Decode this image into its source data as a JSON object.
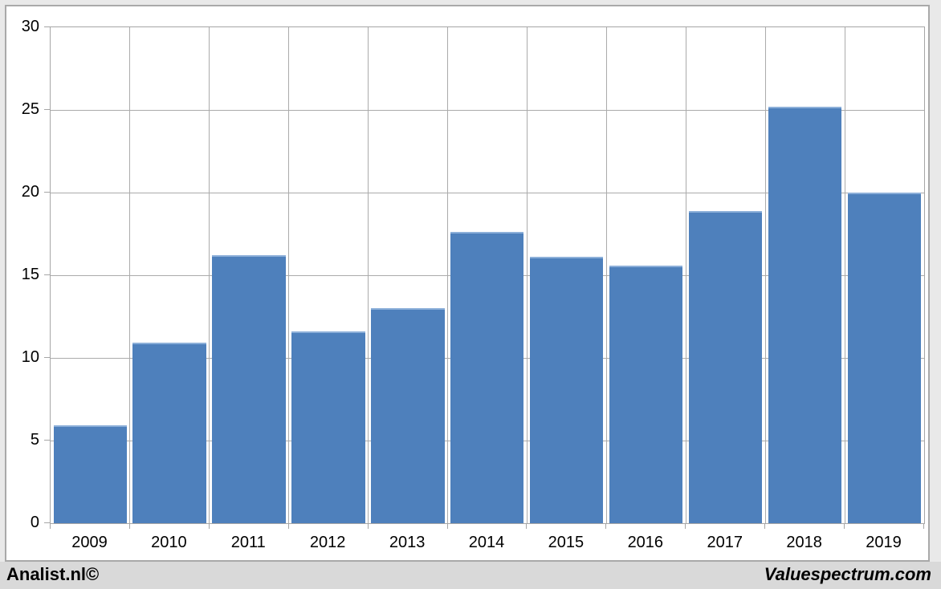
{
  "chart_data": {
    "type": "bar",
    "categories": [
      "2009",
      "2010",
      "2011",
      "2012",
      "2013",
      "2014",
      "2015",
      "2016",
      "2017",
      "2018",
      "2019"
    ],
    "values": [
      5.9,
      10.9,
      16.2,
      11.6,
      13.0,
      17.6,
      16.1,
      15.6,
      18.9,
      25.2,
      20.0
    ],
    "title": "",
    "xlabel": "",
    "ylabel": "",
    "ylim": [
      0,
      30
    ],
    "yticks": [
      0,
      5,
      10,
      15,
      20,
      25,
      30
    ],
    "grid": true,
    "legend": false,
    "bar_color": "#4E80BC",
    "bar_top_edge_color": "#8CAFD9",
    "gridline_color": "#ABABAB"
  },
  "footer": {
    "left_credit": "Analist.nl©",
    "right_credit": "Valuespectrum.com"
  },
  "colors": {
    "page_margin": "#E9E9E9",
    "frame_border": "#A9A9A9",
    "chart_background": "#FFFFFF",
    "credits_bar_background": "#D9D9D9",
    "text": "#000000"
  }
}
